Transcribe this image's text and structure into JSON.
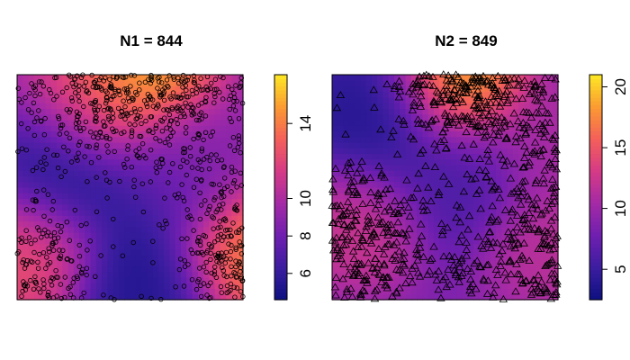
{
  "chart_data": [
    {
      "type": "heatmap",
      "title": "N1 = 844",
      "xlabel": "",
      "ylabel": "",
      "point_marker": "circle",
      "point_count": 844,
      "colorbar": {
        "range": [
          4.6,
          16.6
        ],
        "ticks": [
          6,
          8,
          10,
          14
        ],
        "tick_labels": [
          "6",
          "8",
          "10",
          "14"
        ]
      },
      "colormap": [
        "#0d1080",
        "#3b1da0",
        "#6f1fb0",
        "#a32aa6",
        "#d53a86",
        "#f45f5a",
        "#fb9a32",
        "#fde725"
      ],
      "intensity_peaks": [
        {
          "x": 0.55,
          "y": 0.96,
          "value": 16.5
        },
        {
          "x": 0.98,
          "y": 0.25,
          "value": 15.0
        },
        {
          "x": 0.08,
          "y": 0.22,
          "value": 13.0
        },
        {
          "x": 0.35,
          "y": 0.85,
          "value": 12.5
        },
        {
          "x": 0.75,
          "y": 0.62,
          "value": 11.0
        }
      ],
      "intensity_lows": [
        {
          "x": 0.22,
          "y": 0.55,
          "value": 4.7
        },
        {
          "x": 0.7,
          "y": 0.55,
          "value": 5.0
        },
        {
          "x": 0.55,
          "y": 0.1,
          "value": 4.8
        }
      ],
      "background_value": 9.5
    },
    {
      "type": "heatmap",
      "title": "N2 = 849",
      "xlabel": "",
      "ylabel": "",
      "point_marker": "triangle",
      "point_count": 849,
      "colorbar": {
        "range": [
          2.5,
          21.0
        ],
        "ticks": [
          5,
          10,
          15,
          20
        ],
        "tick_labels": [
          "5",
          "10",
          "15",
          "20"
        ]
      },
      "colormap": [
        "#0d1080",
        "#3b1da0",
        "#6f1fb0",
        "#a32aa6",
        "#d53a86",
        "#f45f5a",
        "#fb9a32",
        "#fde725"
      ],
      "intensity_peaks": [
        {
          "x": 0.55,
          "y": 0.96,
          "value": 20.5
        },
        {
          "x": 0.12,
          "y": 0.35,
          "value": 13.0
        },
        {
          "x": 0.95,
          "y": 0.25,
          "value": 12.0
        },
        {
          "x": 0.95,
          "y": 0.7,
          "value": 11.0
        }
      ],
      "intensity_lows": [
        {
          "x": 0.2,
          "y": 0.8,
          "value": 3.0
        },
        {
          "x": 0.55,
          "y": 0.55,
          "value": 5.5
        }
      ],
      "background_value": 8.5
    }
  ]
}
